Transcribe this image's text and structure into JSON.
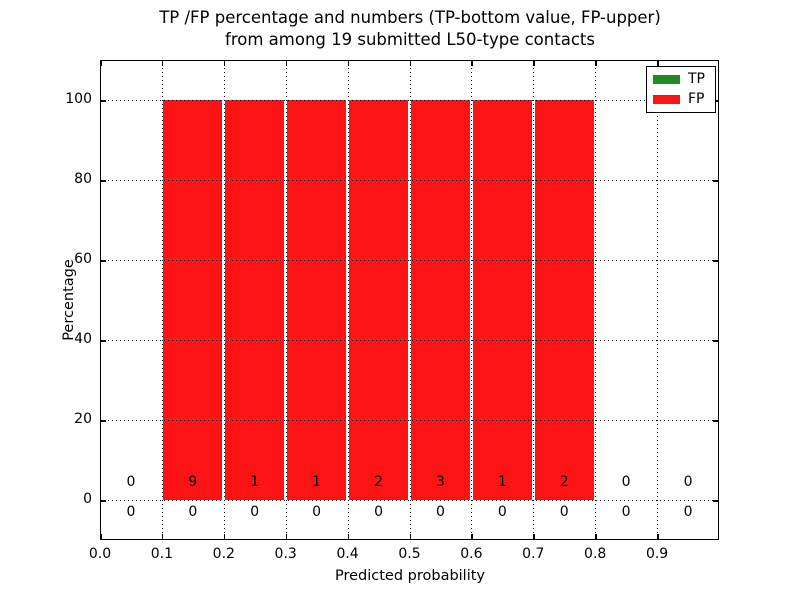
{
  "title": {
    "line1": "TP /FP percentage and numbers (TP-bottom value, FP-upper)",
    "line2": "from among 19 submitted L50-type contacts"
  },
  "axes": {
    "xlabel": "Predicted probability",
    "ylabel": "Percentage"
  },
  "legend": {
    "position": "upper right",
    "items": [
      {
        "label": "TP",
        "color": "#228b22"
      },
      {
        "label": "FP",
        "color": "#fc1414"
      }
    ]
  },
  "chart_data": {
    "type": "bar",
    "title": "TP /FP percentage and numbers (TP-bottom value, FP-upper) from among 19 submitted L50-type contacts",
    "xlabel": "Predicted probability",
    "ylabel": "Percentage",
    "xlim": [
      0.0,
      1.0
    ],
    "ylim": [
      -10,
      110
    ],
    "x_tick_labels": [
      "0.0",
      "0.1",
      "0.2",
      "0.3",
      "0.4",
      "0.5",
      "0.6",
      "0.7",
      "0.8",
      "0.9"
    ],
    "y_tick_values": [
      0,
      20,
      40,
      60,
      80,
      100
    ],
    "grid": "dotted, both axes",
    "legend_position": "upper right",
    "bin_edges": [
      0.0,
      0.1,
      0.2,
      0.3,
      0.4,
      0.5,
      0.6,
      0.7,
      0.8,
      0.9,
      1.0
    ],
    "bin_centers": [
      0.05,
      0.15,
      0.25,
      0.35,
      0.45,
      0.55,
      0.65,
      0.75,
      0.85,
      0.95
    ],
    "series": [
      {
        "name": "TP",
        "color": "#228b22",
        "percentages": [
          0,
          0,
          0,
          0,
          0,
          0,
          0,
          0,
          0,
          0
        ],
        "counts": [
          0,
          0,
          0,
          0,
          0,
          0,
          0,
          0,
          0,
          0
        ],
        "counts_row": "lower"
      },
      {
        "name": "FP",
        "color": "#fc1414",
        "percentages": [
          0,
          100,
          100,
          100,
          100,
          100,
          100,
          100,
          0,
          0
        ],
        "counts": [
          0,
          9,
          1,
          1,
          2,
          3,
          1,
          2,
          0,
          0
        ],
        "counts_row": "upper"
      }
    ]
  }
}
